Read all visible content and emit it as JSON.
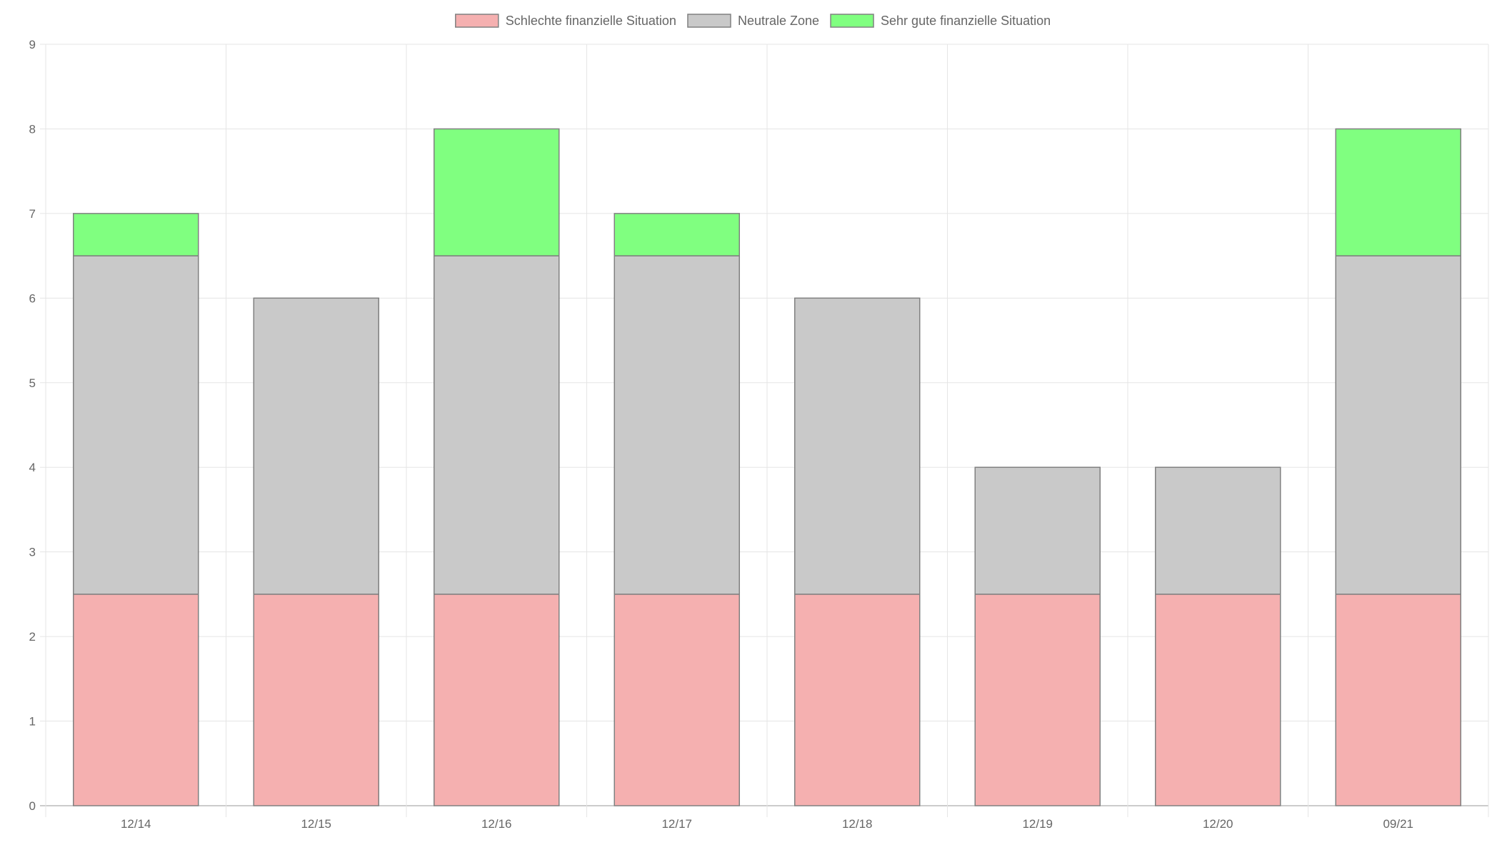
{
  "chart_data": {
    "type": "bar",
    "stacked": true,
    "categories": [
      "12/14",
      "12/15",
      "12/16",
      "12/17",
      "12/18",
      "12/19",
      "12/20",
      "09/21"
    ],
    "series": [
      {
        "name": "Schlechte finanzielle Situation",
        "color": "#f5b0b0",
        "values": [
          2.5,
          2.5,
          2.5,
          2.5,
          2.5,
          2.5,
          2.5,
          2.5
        ]
      },
      {
        "name": "Neutrale Zone",
        "color": "#c9c9c9",
        "values": [
          4,
          3.5,
          4,
          4,
          3.5,
          1.5,
          1.5,
          4
        ]
      },
      {
        "name": "Sehr gute finanzielle Situation",
        "color": "#80ff80",
        "values": [
          0.5,
          0,
          1.5,
          0.5,
          0,
          0,
          0,
          1.5
        ]
      }
    ],
    "ylim": [
      0,
      9
    ],
    "yticks": [
      0,
      1,
      2,
      3,
      4,
      5,
      6,
      7,
      8,
      9
    ],
    "title": "",
    "xlabel": "",
    "ylabel": "",
    "grid": true,
    "legend_position": "top",
    "bar_border_color": "#808080",
    "grid_color": "#e5e5e5",
    "axis_color": "#999999"
  }
}
